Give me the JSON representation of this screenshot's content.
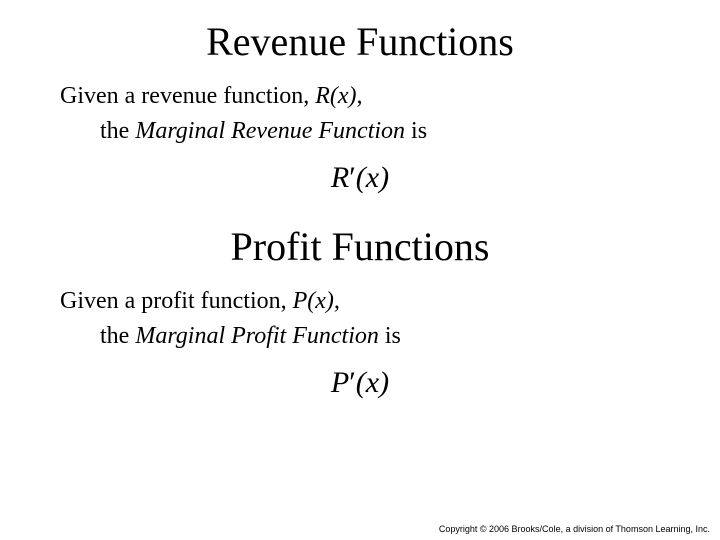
{
  "section1": {
    "title": "Revenue Functions",
    "intro_prefix": "Given a revenue function, ",
    "intro_func": "R",
    "intro_arg": "(x),",
    "sub_prefix": "the ",
    "sub_term": "Marginal Revenue Function",
    "sub_suffix": " is",
    "formula_func": "R",
    "formula_prime": "′",
    "formula_arg": "(x)"
  },
  "section2": {
    "title": "Profit Functions",
    "intro_prefix": "Given a profit function, ",
    "intro_func": "P",
    "intro_arg": "(x),",
    "sub_prefix": "the ",
    "sub_term": "Marginal Profit Function",
    "sub_suffix": " is",
    "formula_func": "P",
    "formula_prime": "′",
    "formula_arg": "(x)"
  },
  "copyright": "Copyright © 2006 Brooks/Cole, a division of Thomson Learning, Inc.",
  "styles": {
    "background_color": "#ffffff",
    "text_color": "#000000",
    "title_fontsize": 40,
    "body_fontsize": 24,
    "formula_fontsize": 30,
    "copyright_fontsize": 9,
    "font_family": "Times New Roman"
  }
}
